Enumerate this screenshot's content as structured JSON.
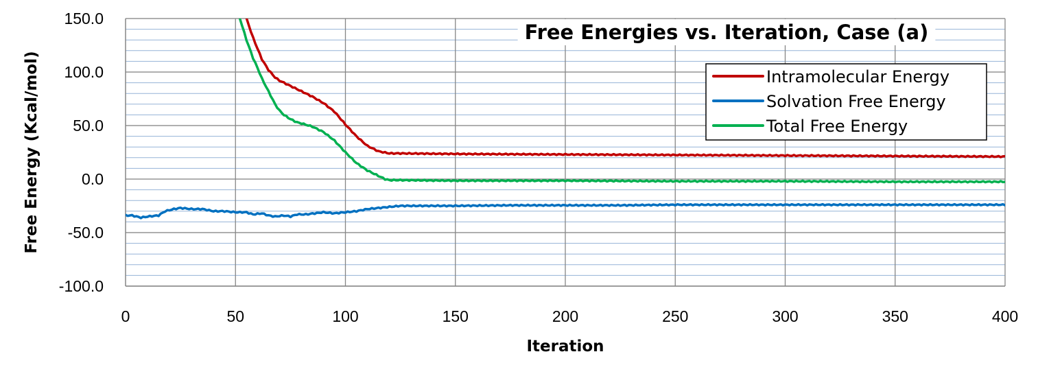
{
  "chart_data": {
    "type": "line",
    "title": "Free Energies vs. Iteration, Case (a)",
    "xlabel": "Iteration",
    "ylabel": "Free Energy (Kcal/mol)",
    "xlim": [
      0,
      400
    ],
    "ylim": [
      -100,
      150
    ],
    "x_ticks": [
      0,
      50,
      100,
      150,
      200,
      250,
      300,
      350,
      400
    ],
    "x_tick_labels": [
      "0",
      "50",
      "100",
      "150",
      "200",
      "250",
      "300",
      "350",
      "400"
    ],
    "y_ticks": [
      -100,
      -50,
      0,
      50,
      100,
      150
    ],
    "y_tick_labels": [
      "-100.0",
      "-50.0",
      "0.0",
      "50.0",
      "100.0",
      "150.0"
    ],
    "minor_grid_step": 10,
    "grid": true,
    "legend_position": "top-right",
    "series": [
      {
        "name": "Intramolecular Energy",
        "color": "#C00000",
        "x": [
          55,
          58,
          60,
          62,
          65,
          68,
          70,
          75,
          80,
          85,
          90,
          95,
          100,
          105,
          110,
          115,
          120,
          125,
          150,
          200,
          250,
          300,
          350,
          400
        ],
        "y": [
          150,
          132,
          122,
          112,
          102,
          95,
          92,
          87,
          82,
          77,
          71,
          63,
          51,
          40,
          31,
          26,
          24,
          24,
          23.5,
          23,
          22.5,
          22,
          21.5,
          21
        ]
      },
      {
        "name": "Solvation Free Energy",
        "color": "#0070C0",
        "x": [
          0,
          3,
          7,
          10,
          15,
          18,
          22,
          25,
          30,
          35,
          40,
          45,
          50,
          55,
          58,
          62,
          65,
          68,
          72,
          75,
          78,
          82,
          86,
          90,
          95,
          100,
          105,
          110,
          115,
          120,
          125,
          130,
          150,
          175,
          200,
          225,
          250,
          275,
          300,
          325,
          350,
          375,
          400
        ],
        "y": [
          -34,
          -34,
          -36,
          -35,
          -34,
          -30,
          -28,
          -27,
          -28,
          -28,
          -30,
          -30,
          -31,
          -31,
          -33,
          -32,
          -34,
          -35,
          -34,
          -35,
          -33,
          -33,
          -32,
          -31,
          -32,
          -31,
          -30,
          -28,
          -27,
          -26,
          -25,
          -25,
          -25,
          -24.5,
          -24.5,
          -24.5,
          -24,
          -24,
          -24,
          -24,
          -24,
          -24,
          -24
        ]
      },
      {
        "name": "Total Free Energy",
        "color": "#00B050",
        "x": [
          52,
          55,
          58,
          60,
          62,
          65,
          68,
          70,
          72,
          75,
          78,
          80,
          85,
          88,
          90,
          95,
          100,
          105,
          110,
          115,
          118,
          120,
          125,
          150,
          200,
          250,
          300,
          350,
          400
        ],
        "y": [
          150,
          130,
          113,
          104,
          94,
          82,
          70,
          64,
          60,
          56,
          53,
          52,
          49,
          46,
          44,
          36,
          25,
          15,
          8,
          3,
          0,
          -1,
          -1,
          -1.5,
          -1.5,
          -2,
          -2,
          -2.5,
          -2.5
        ]
      }
    ]
  }
}
